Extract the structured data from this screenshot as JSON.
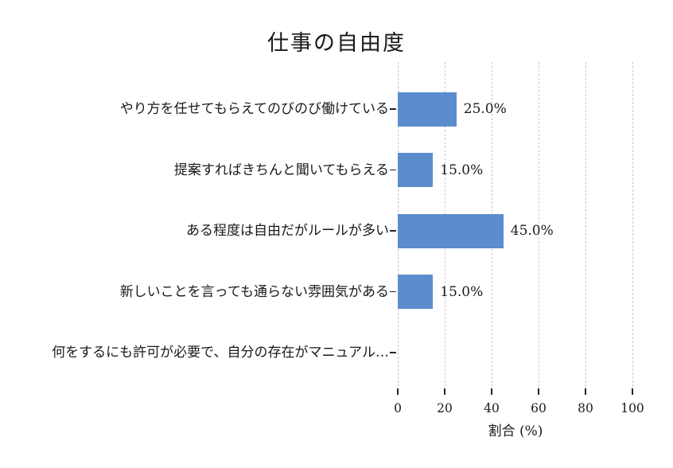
{
  "chart_data": {
    "type": "bar",
    "orientation": "horizontal",
    "title": "仕事の自由度",
    "categories": [
      "やり方を任せてもらえてのびのび働けている",
      "提案すればきちんと聞いてもらえる",
      "ある程度は自由だがルールが多い",
      "新しいことを言っても通らない雰囲気がある",
      "何をするにも許可が必要で、自分の存在がマニュアル…"
    ],
    "values": [
      25.0,
      15.0,
      45.0,
      15.0,
      0.0
    ],
    "value_labels": [
      "25.0%",
      "15.0%",
      "45.0%",
      "15.0%",
      ""
    ],
    "xlabel": "割合 (%)",
    "xlim": [
      0,
      100
    ],
    "xticks": [
      0,
      20,
      40,
      60,
      80,
      100
    ],
    "grid": {
      "axis": "x",
      "style": "dashed",
      "color": "#c9c9c9"
    },
    "bar_color": "#5b8ccd",
    "text_color": "#1a1a1a",
    "legend": "none"
  }
}
